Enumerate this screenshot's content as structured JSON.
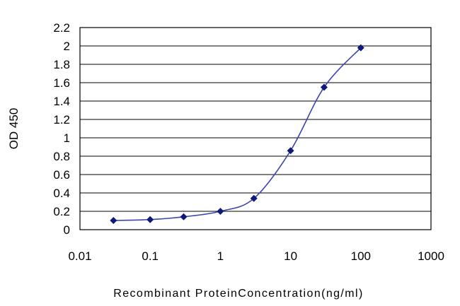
{
  "chart_data": {
    "type": "line",
    "xlabel": "Recombinant ProteinConcentration(ng/ml)",
    "ylabel": "OD 450",
    "x_scale": "log",
    "xlim": [
      0.01,
      1000
    ],
    "ylim": [
      0,
      2.2
    ],
    "x_ticks": [
      "0.01",
      "0.1",
      "1",
      "10",
      "100",
      "1000"
    ],
    "y_ticks": [
      "0",
      "0.2",
      "0.4",
      "0.6",
      "0.8",
      "1",
      "1.2",
      "1.4",
      "1.6",
      "1.8",
      "2",
      "2.2"
    ],
    "grid": "horizontal",
    "legend": "none",
    "series": [
      {
        "x": [
          0.03,
          0.1,
          0.3,
          1,
          3,
          10,
          30,
          100
        ],
        "y": [
          0.1,
          0.11,
          0.14,
          0.2,
          0.34,
          0.86,
          1.55,
          1.98
        ],
        "color": "#1a2a8c"
      }
    ],
    "colors": {
      "line": "#3b47b0",
      "marker": "#0d1a7a",
      "grid": "#000000",
      "plot_bg": "#ffffff"
    }
  }
}
